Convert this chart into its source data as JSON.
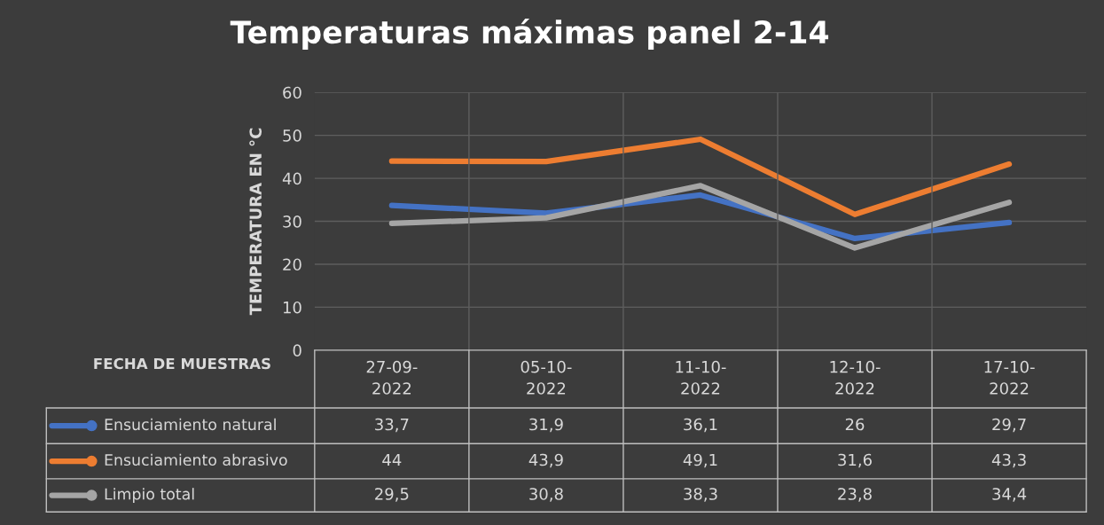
{
  "chart_data": {
    "type": "line",
    "title": "Temperaturas máximas panel 2-14",
    "ylabel": "TEMPERATURA EN °C",
    "xlabel": "FECHA DE MUESTRAS",
    "categories": [
      "27-09-2022",
      "05-10-2022",
      "11-10-2022",
      "12-10-2022",
      "17-10-2022"
    ],
    "series": [
      {
        "name": "Ensuciamiento natural",
        "color": "#4472c4",
        "values": [
          33.7,
          31.9,
          36.1,
          26,
          29.7
        ],
        "value_labels": [
          "33,7",
          "31,9",
          "36,1",
          "26",
          "29,7"
        ]
      },
      {
        "name": "Ensuciamiento abrasivo",
        "color": "#ed7d31",
        "values": [
          44,
          43.9,
          49.1,
          31.6,
          43.3
        ],
        "value_labels": [
          "44",
          "43,9",
          "49,1",
          "31,6",
          "43,3"
        ]
      },
      {
        "name": "Limpio total",
        "color": "#a5a5a5",
        "values": [
          29.5,
          30.8,
          38.3,
          23.8,
          34.4
        ],
        "value_labels": [
          "29,5",
          "30,8",
          "38,3",
          "23,8",
          "34,4"
        ]
      }
    ],
    "ylim": [
      0,
      60
    ],
    "yticks": [
      0,
      10,
      20,
      30,
      40,
      50,
      60
    ],
    "grid": "y",
    "legend": "bottom left",
    "marker": "none",
    "line_style": "solid"
  }
}
